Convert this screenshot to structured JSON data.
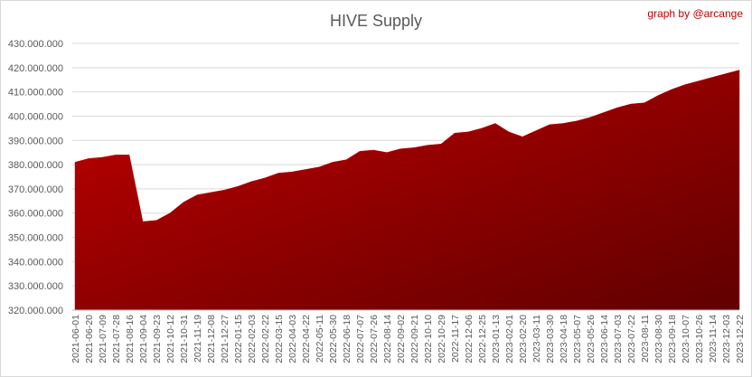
{
  "chart_data": {
    "type": "area",
    "title": "HIVE Supply",
    "annotation": "graph by @arcange",
    "color": "#c00000",
    "categories": [
      "2021-06-01",
      "2021-06-20",
      "2021-07-09",
      "2021-07-28",
      "2021-08-16",
      "2021-09-04",
      "2021-09-23",
      "2021-10-12",
      "2021-10-31",
      "2021-11-19",
      "2021-12-08",
      "2021-12-27",
      "2022-01-15",
      "2022-02-03",
      "2022-02-22",
      "2022-03-15",
      "2022-04-03",
      "2022-04-22",
      "2022-05-11",
      "2022-05-30",
      "2022-06-18",
      "2022-07-07",
      "2022-07-26",
      "2022-08-14",
      "2022-09-02",
      "2022-09-21",
      "2022-10-10",
      "2022-10-29",
      "2022-11-17",
      "2022-12-06",
      "2022-12-25",
      "2023-01-13",
      "2023-02-01",
      "2023-02-20",
      "2023-03-11",
      "2023-03-30",
      "2023-04-18",
      "2023-05-07",
      "2023-05-26",
      "2023-06-14",
      "2023-07-03",
      "2023-07-22",
      "2023-08-11",
      "2023-08-30",
      "2023-09-18",
      "2023-10-07",
      "2023-10-26",
      "2023-11-14",
      "2023-12-03",
      "2023-12-22"
    ],
    "values": [
      381000000,
      382500000,
      383000000,
      384000000,
      384000000,
      356500000,
      357000000,
      360000000,
      364500000,
      367500000,
      368500000,
      369500000,
      371000000,
      373000000,
      374500000,
      376500000,
      377000000,
      378000000,
      379000000,
      381000000,
      382000000,
      385500000,
      386000000,
      385000000,
      386500000,
      387000000,
      388000000,
      388500000,
      393000000,
      393500000,
      395000000,
      397000000,
      393500000,
      391500000,
      394000000,
      396500000,
      397000000,
      398000000,
      399500000,
      401500000,
      403500000,
      405000000,
      405500000,
      408500000,
      411000000,
      413000000,
      414500000,
      416000000,
      417500000,
      419000000
    ],
    "ylim": [
      320000000,
      430000000
    ],
    "yticks": [
      {
        "value": 320000000,
        "label": "320.000.000"
      },
      {
        "value": 330000000,
        "label": "330.000.000"
      },
      {
        "value": 340000000,
        "label": "340.000.000"
      },
      {
        "value": 350000000,
        "label": "350.000.000"
      },
      {
        "value": 360000000,
        "label": "360.000.000"
      },
      {
        "value": 370000000,
        "label": "370.000.000"
      },
      {
        "value": 380000000,
        "label": "380.000.000"
      },
      {
        "value": 390000000,
        "label": "390.000.000"
      },
      {
        "value": 400000000,
        "label": "400.000.000"
      },
      {
        "value": 410000000,
        "label": "410.000.000"
      },
      {
        "value": 420000000,
        "label": "420.000.000"
      },
      {
        "value": 430000000,
        "label": "430.000.000"
      }
    ],
    "grid": true
  }
}
